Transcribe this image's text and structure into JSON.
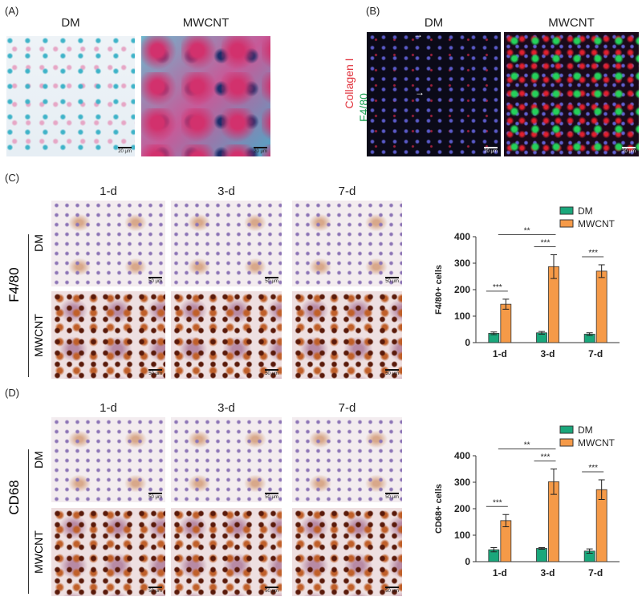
{
  "panelA": {
    "label": "(A)",
    "titles": [
      "DM",
      "MWCNT"
    ],
    "scale": "20 μm"
  },
  "panelB": {
    "label": "(B)",
    "titles": [
      "DM",
      "MWCNT"
    ],
    "stain1": "Collagen I",
    "stain2": "F4/80",
    "scale": "20 μm",
    "arrow": "→"
  },
  "panelC": {
    "label": "(C)",
    "cols": [
      "1-d",
      "3-d",
      "7-d"
    ],
    "rows": [
      "DM",
      "MWCNT"
    ],
    "marker": "F4/80",
    "scale": "50 μm"
  },
  "panelD": {
    "label": "(D)",
    "cols": [
      "1-d",
      "3-d",
      "7-d"
    ],
    "rows": [
      "DM",
      "MWCNT"
    ],
    "marker": "CD68",
    "scale": "50 μm"
  },
  "colors": {
    "DM": "#1aa77b",
    "MWCNT": "#f59a48"
  },
  "chart_data": [
    {
      "type": "bar",
      "ylabel": "F4/80+ cells",
      "xlabel": "",
      "ylim": [
        0,
        400
      ],
      "yticks": [
        0,
        100,
        200,
        300,
        400
      ],
      "categories": [
        "1-d",
        "3-d",
        "7-d"
      ],
      "series": [
        {
          "name": "DM",
          "values": [
            35,
            37,
            32
          ],
          "errors": [
            5,
            5,
            5
          ]
        },
        {
          "name": "MWCNT",
          "values": [
            145,
            287,
            270
          ],
          "errors": [
            19,
            45,
            24
          ]
        }
      ],
      "legend": "top-right",
      "annotations": [
        {
          "text": "***",
          "group": 0
        },
        {
          "text": "***",
          "group": 1
        },
        {
          "text": "***",
          "group": 2
        },
        {
          "text": "**",
          "between": [
            "1-d",
            "3-d"
          ]
        }
      ]
    },
    {
      "type": "bar",
      "ylabel": "CD68+ cells",
      "xlabel": "",
      "ylim": [
        0,
        400
      ],
      "yticks": [
        0,
        100,
        200,
        300,
        400
      ],
      "categories": [
        "1-d",
        "3-d",
        "7-d"
      ],
      "series": [
        {
          "name": "DM",
          "values": [
            45,
            50,
            40
          ],
          "errors": [
            8,
            3,
            8
          ]
        },
        {
          "name": "MWCNT",
          "values": [
            155,
            302,
            272
          ],
          "errors": [
            23,
            48,
            37
          ]
        }
      ],
      "legend": "top-right",
      "annotations": [
        {
          "text": "***",
          "group": 0
        },
        {
          "text": "***",
          "group": 1
        },
        {
          "text": "***",
          "group": 2
        },
        {
          "text": "**",
          "between": [
            "1-d",
            "3-d"
          ]
        }
      ]
    }
  ]
}
